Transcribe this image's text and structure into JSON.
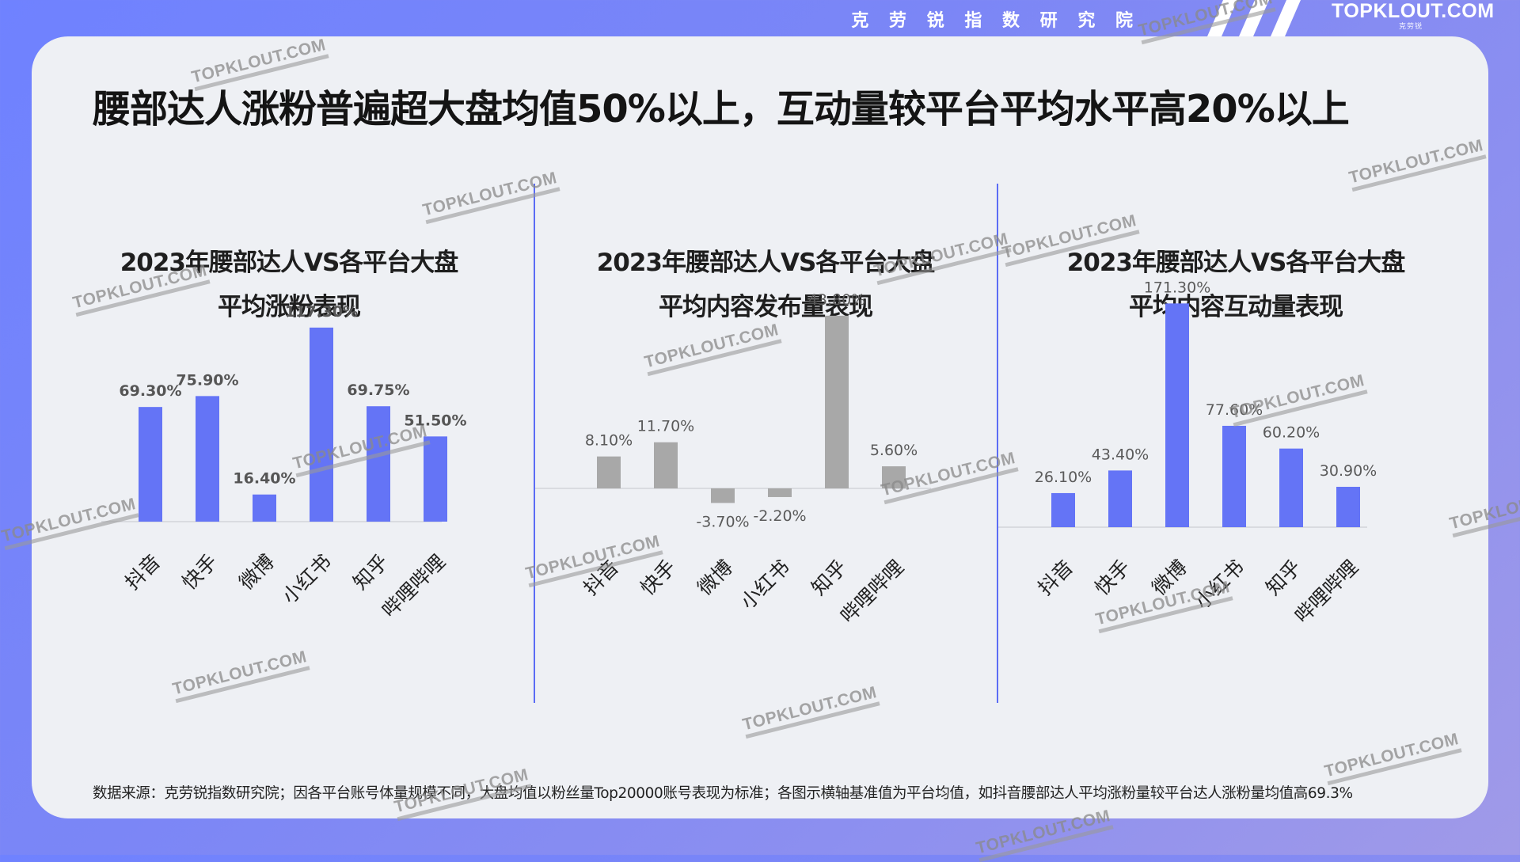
{
  "header": {
    "brand_cn": "克 劳 锐 指 数 研 究 院",
    "logo_text": "TOPKLOUT.COM",
    "logo_sub": "克劳锐",
    "colors": {
      "accent": "#6474f6",
      "bar_primary": "#6474f6",
      "bar_secondary": "#a8a8a8"
    }
  },
  "headline": "腰部达人涨粉普遍超大盘均值50%以上，互动量较平台平均水平高20%以上",
  "watermark_text": "TOPKLOUT.COM",
  "panels": [
    {
      "title_line1": "2023年腰部达人VS各平台大盘",
      "title_line2": "平均涨粉表现"
    },
    {
      "title_line1": "2023年腰部达人VS各平台大盘",
      "title_line2": "平均内容发布量表现"
    },
    {
      "title_line1": "2023年腰部达人VS各平台大盘",
      "title_line2": "平均内容互动量表现"
    }
  ],
  "chart_data": [
    {
      "type": "bar",
      "title": "2023年腰部达人VS各平台大盘平均涨粉表现",
      "categories": [
        "抖音",
        "快手",
        "微博",
        "小红书",
        "知乎",
        "哔哩哔哩"
      ],
      "values": [
        69.3,
        75.9,
        16.4,
        117.3,
        69.75,
        51.5
      ],
      "labels": [
        "69.30%",
        "75.90%",
        "16.40%",
        "117.30%",
        "69.75%",
        "51.50%"
      ],
      "unit": "%",
      "color": "#6474f6",
      "bold_labels": true
    },
    {
      "type": "bar",
      "title": "2023年腰部达人VS各平台大盘平均内容发布量表现",
      "categories": [
        "抖音",
        "快手",
        "微博",
        "小红书",
        "知乎",
        "哔哩哔哩"
      ],
      "values": [
        8.1,
        11.7,
        -3.7,
        -2.2,
        43.8,
        5.6
      ],
      "labels": [
        "8.10%",
        "11.70%",
        "-3.70%",
        "-2.20%",
        "43.80%",
        "5.60%"
      ],
      "unit": "%",
      "color": "#a8a8a8",
      "bold_labels": false
    },
    {
      "type": "bar",
      "title": "2023年腰部达人VS各平台大盘平均内容互动量表现",
      "categories": [
        "抖音",
        "快手",
        "微博",
        "小红书",
        "知乎",
        "哔哩哔哩"
      ],
      "values": [
        26.1,
        43.4,
        171.3,
        77.6,
        60.2,
        30.9
      ],
      "labels": [
        "26.10%",
        "43.40%",
        "171.30%",
        "77.60%",
        "60.20%",
        "30.90%"
      ],
      "unit": "%",
      "color": "#6474f6",
      "bold_labels": false
    }
  ],
  "footer": "数据来源：克劳锐指数研究院；因各平台账号体量规模不同，大盘均值以粉丝量Top20000账号表现为标准；各图示横轴基准值为平台均值，如抖音腰部达人平均涨粉量较平台达人涨粉量均值高69.3%"
}
